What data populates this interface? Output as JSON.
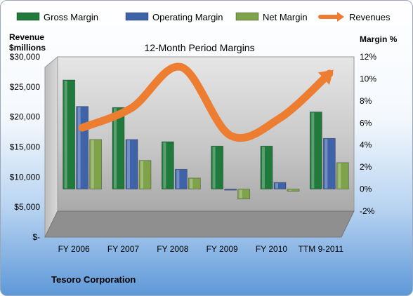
{
  "chart_data": {
    "type": "bar",
    "title": "12-Month Period Margins",
    "categories": [
      "FY 2006",
      "FY 2007",
      "FY 2008",
      "FY 2009",
      "FY 2010",
      "TTM 9-2011"
    ],
    "series": [
      {
        "name": "Gross Margin",
        "axis": "right",
        "color": "#1f7a3c",
        "values": [
          9.9,
          7.4,
          4.3,
          3.9,
          3.9,
          7.0
        ]
      },
      {
        "name": "Operating Margin",
        "axis": "right",
        "color": "#3f63a8",
        "values": [
          7.5,
          4.5,
          1.8,
          -0.1,
          0.6,
          4.6
        ]
      },
      {
        "name": "Net Margin",
        "axis": "right",
        "color": "#7fa34a",
        "values": [
          4.5,
          2.6,
          1.0,
          -0.9,
          -0.2,
          2.4
        ]
      },
      {
        "name": "Revenues",
        "type": "line",
        "axis": "left",
        "color": "#ed7d31",
        "values": [
          18200,
          21500,
          28300,
          16900,
          19800,
          27200
        ]
      }
    ],
    "yleft": {
      "label_line1": "Revenue",
      "label_line2": "$millions",
      "lim": [
        0,
        30000
      ],
      "ticks": [
        "$-",
        "$5,000",
        "$10,000",
        "$15,000",
        "$20,000",
        "$25,000",
        "$30,000"
      ]
    },
    "yright": {
      "label": "Margin %",
      "lim": [
        -2,
        12
      ],
      "ticks": [
        "-2%",
        "0%",
        "2%",
        "4%",
        "6%",
        "8%",
        "10%",
        "12%"
      ]
    },
    "legend_position": "top",
    "footer": "Tesoro Corporation"
  }
}
